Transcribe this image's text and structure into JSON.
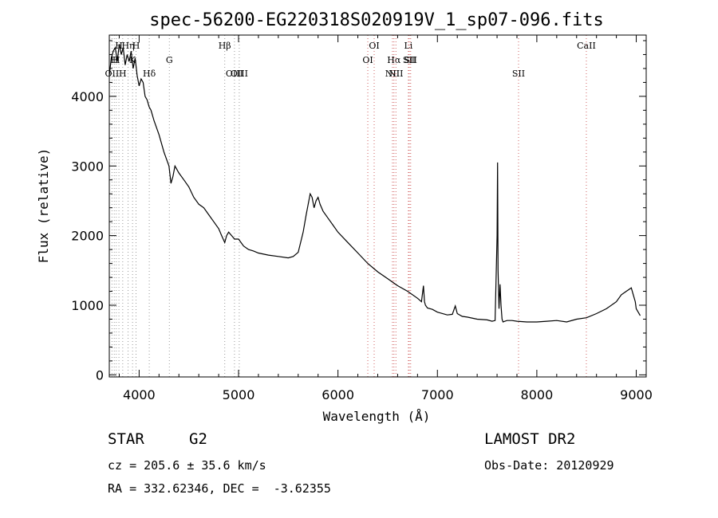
{
  "chart_data": {
    "type": "line",
    "title": "spec-56200-EG220318S020919V_1_sp07-096.fits",
    "xlabel": "Wavelength (Å)",
    "ylabel": "Flux (relative)",
    "xlim": [
      3700,
      9100
    ],
    "ylim": [
      -30,
      4880
    ],
    "x_ticks": [
      4000,
      5000,
      6000,
      7000,
      8000,
      9000
    ],
    "y_ticks": [
      0,
      1000,
      2000,
      3000,
      4000
    ],
    "grid": false,
    "series": [
      {
        "x": [
          3700,
          3720,
          3740,
          3760,
          3780,
          3800,
          3820,
          3840,
          3860,
          3880,
          3900,
          3920,
          3940,
          3960,
          3980,
          4000,
          4020,
          4040,
          4060,
          4080,
          4100,
          4120,
          4150,
          4200,
          4250,
          4300,
          4320,
          4340,
          4360,
          4380,
          4400,
          4450,
          4500,
          4550,
          4600,
          4650,
          4700,
          4750,
          4800,
          4830,
          4861,
          4880,
          4900,
          4930,
          4960,
          5000,
          5050,
          5100,
          5150,
          5200,
          5300,
          5400,
          5500,
          5550,
          5600,
          5650,
          5680,
          5700,
          5720,
          5740,
          5760,
          5780,
          5800,
          5820,
          5850,
          5900,
          5950,
          6000,
          6100,
          6200,
          6300,
          6400,
          6500,
          6600,
          6700,
          6800,
          6840,
          6860,
          6870,
          6880,
          6900,
          6950,
          7000,
          7100,
          7150,
          7180,
          7200,
          7250,
          7300,
          7400,
          7500,
          7550,
          7580,
          7600,
          7605,
          7610,
          7620,
          7630,
          7640,
          7650,
          7660,
          7680,
          7700,
          7750,
          7800,
          7900,
          8000,
          8100,
          8200,
          8300,
          8400,
          8500,
          8600,
          8700,
          8800,
          8850,
          8900,
          8950,
          8970,
          8990,
          9000,
          9020,
          9040
        ],
        "y": [
          4300,
          4550,
          4650,
          4700,
          4500,
          4750,
          4600,
          4700,
          4450,
          4600,
          4500,
          4650,
          4400,
          4550,
          4300,
          4150,
          4250,
          4200,
          4000,
          3950,
          3850,
          3800,
          3650,
          3450,
          3200,
          3000,
          2750,
          2850,
          3000,
          2950,
          2900,
          2800,
          2700,
          2550,
          2450,
          2400,
          2300,
          2200,
          2100,
          2000,
          1900,
          2000,
          2050,
          2000,
          1950,
          1950,
          1850,
          1800,
          1780,
          1750,
          1720,
          1700,
          1680,
          1700,
          1760,
          2050,
          2300,
          2450,
          2600,
          2550,
          2400,
          2500,
          2550,
          2450,
          2350,
          2250,
          2150,
          2050,
          1900,
          1750,
          1600,
          1480,
          1380,
          1280,
          1200,
          1100,
          1050,
          1280,
          1050,
          1000,
          960,
          940,
          900,
          860,
          870,
          990,
          880,
          840,
          830,
          800,
          790,
          770,
          780,
          2000,
          3050,
          1500,
          950,
          1300,
          1000,
          800,
          760,
          770,
          780,
          780,
          770,
          760,
          760,
          770,
          780,
          760,
          800,
          820,
          880,
          950,
          1050,
          1150,
          1200,
          1250,
          1150,
          1050,
          950,
          900,
          850
        ]
      }
    ],
    "lines": [
      {
        "label": "OII",
        "x": 3727,
        "row": 3,
        "color": "gray"
      },
      {
        "label": "H",
        "x": 3750,
        "row": 2,
        "color": "gray"
      },
      {
        "label": "H",
        "x": 3770,
        "row": 2,
        "color": "gray"
      },
      {
        "label": "H",
        "x": 3797,
        "row": 1,
        "color": "gray"
      },
      {
        "label": "H",
        "x": 3835,
        "row": 3,
        "color": "gray"
      },
      {
        "label": "Hη",
        "x": 3889,
        "row": 1,
        "color": "gray"
      },
      {
        "label": "K",
        "x": 3934,
        "row": 2,
        "color": "gray"
      },
      {
        "label": "H",
        "x": 3969,
        "row": 1,
        "color": "gray"
      },
      {
        "label": "Hδ",
        "x": 4102,
        "row": 3,
        "color": "gray"
      },
      {
        "label": "G",
        "x": 4304,
        "row": 2,
        "color": "gray"
      },
      {
        "label": "Hβ",
        "x": 4861,
        "row": 1,
        "color": "gray"
      },
      {
        "label": "OIII",
        "x": 4959,
        "row": 3,
        "color": "gray"
      },
      {
        "label": "OIII",
        "x": 5007,
        "row": 3,
        "color": "gray"
      },
      {
        "label": "OI",
        "x": 6300,
        "row": 2,
        "color": "red"
      },
      {
        "label": "OI",
        "x": 6364,
        "row": 1,
        "color": "red"
      },
      {
        "label": "NII",
        "x": 6548,
        "row": 3,
        "color": "red"
      },
      {
        "label": "Hα",
        "x": 6563,
        "row": 2,
        "color": "red"
      },
      {
        "label": "NII",
        "x": 6583,
        "row": 3,
        "color": "red"
      },
      {
        "label": "Li",
        "x": 6708,
        "row": 1,
        "color": "red"
      },
      {
        "label": "SII",
        "x": 6717,
        "row": 2,
        "color": "red"
      },
      {
        "label": "SII",
        "x": 6731,
        "row": 2,
        "color": "red"
      },
      {
        "label": "SII",
        "x": 7816,
        "row": 3,
        "color": "red"
      },
      {
        "label": "CaII",
        "x": 8498,
        "row": 1,
        "color": "red"
      }
    ]
  },
  "info": {
    "class": "STAR",
    "subclass": "G2",
    "survey": "LAMOST DR2",
    "cz": "cz = 205.6 ± 35.6 km/s",
    "obs_date": "Obs-Date: 20120929",
    "radec": "RA = 332.62346, DEC =  -3.62355"
  }
}
